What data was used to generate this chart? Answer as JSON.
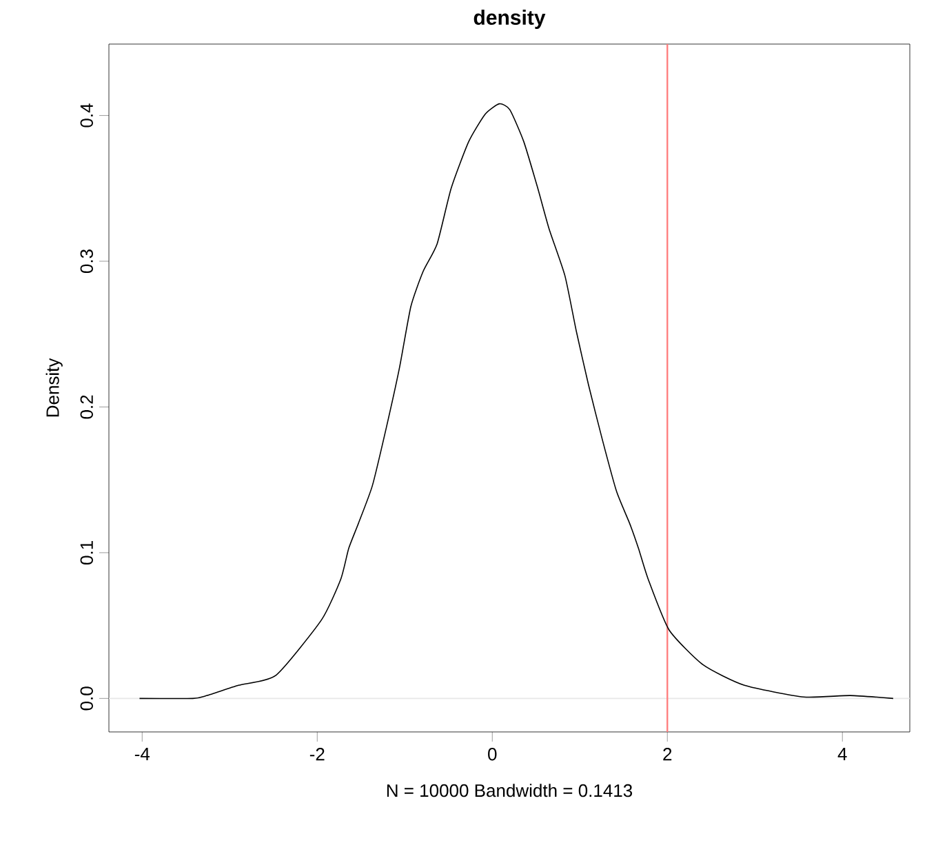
{
  "chart_data": {
    "type": "line",
    "title": "density",
    "xlabel": "N = 10000   Bandwidth = 0.1413",
    "ylabel": "Density",
    "x": [
      -4.03,
      -3.42,
      -3.26,
      -2.9,
      -2.47,
      -1.95,
      -1.73,
      -1.64,
      -1.53,
      -1.37,
      -1.21,
      -1.06,
      -0.93,
      -0.79,
      -0.63,
      -0.47,
      -0.27,
      -0.08,
      0.08,
      0.2,
      0.36,
      0.52,
      0.65,
      0.83,
      0.96,
      1.1,
      1.26,
      1.42,
      1.57,
      1.67,
      1.78,
      2.02,
      2.41,
      2.88,
      3.56,
      4.09,
      4.58
    ],
    "values": [
      0.0,
      0.0,
      0.002,
      0.009,
      0.016,
      0.054,
      0.082,
      0.103,
      0.12,
      0.146,
      0.186,
      0.227,
      0.269,
      0.293,
      0.312,
      0.35,
      0.382,
      0.401,
      0.408,
      0.404,
      0.382,
      0.35,
      0.322,
      0.29,
      0.252,
      0.215,
      0.177,
      0.142,
      0.12,
      0.103,
      0.082,
      0.047,
      0.023,
      0.009,
      0.001,
      0.002,
      0.0
    ],
    "color": "#000000",
    "xlim": [
      -4.38,
      4.77
    ],
    "ylim": [
      -0.023,
      0.449
    ],
    "xticks": [
      -4,
      -2,
      0,
      2,
      4
    ],
    "yticks": [
      {
        "value": 0,
        "label": "0.0"
      },
      0.1,
      0.2,
      0.3,
      0.4
    ],
    "ref_lines": [
      {
        "axis": "y",
        "value": 0,
        "color": "#e8e8e8"
      },
      {
        "axis": "x",
        "value": 2,
        "color": "#ff7f7f"
      }
    ]
  }
}
